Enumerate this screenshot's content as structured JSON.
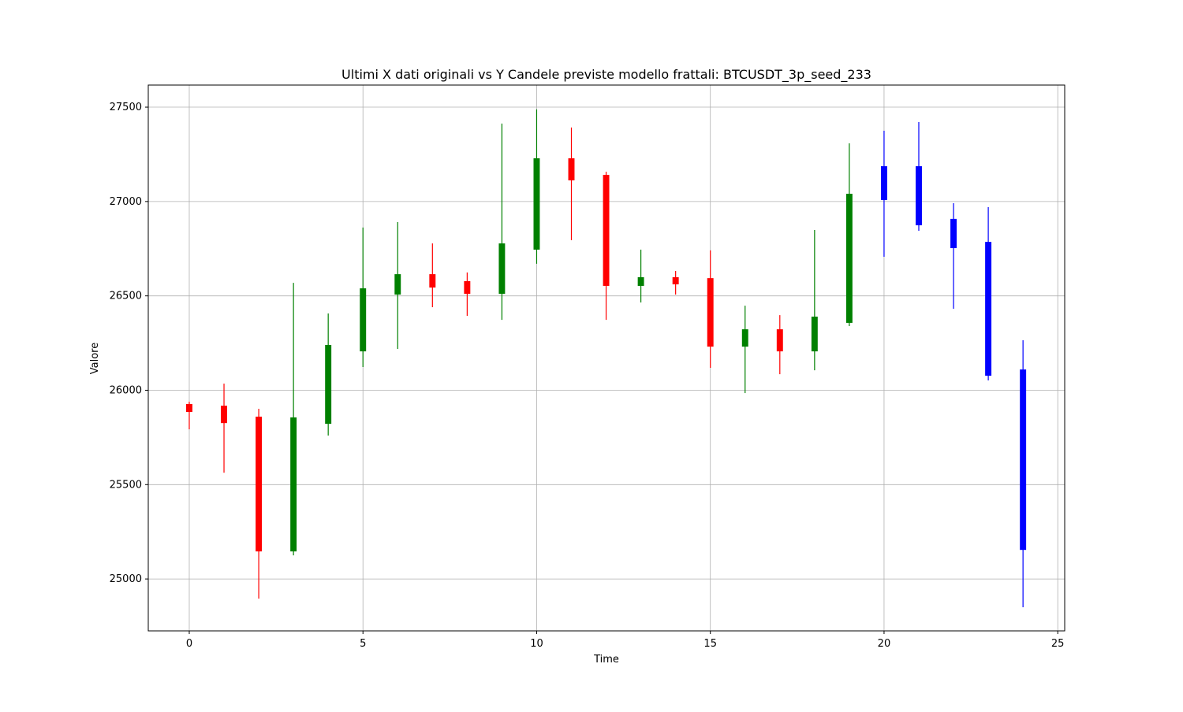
{
  "chart_data": {
    "type": "candlestick",
    "title": "Ultimi X dati originali vs Y Candele previste modello frattali: BTCUSDT_3p_seed_233",
    "x_label": "Time",
    "y_label": "Valore",
    "x": [
      0,
      1,
      2,
      3,
      4,
      5,
      6,
      7,
      8,
      9,
      10,
      11,
      12,
      13,
      14,
      15,
      16,
      17,
      18,
      19,
      20,
      21,
      22,
      23,
      24
    ],
    "open": [
      25927,
      25918,
      25860,
      25146,
      25822,
      26206,
      26507,
      26615,
      26578,
      26511,
      26745,
      27229,
      27141,
      26553,
      26599,
      26594,
      26231,
      26323,
      26206,
      26357,
      27008,
      27187,
      26908,
      26786,
      26110
    ],
    "high": [
      25939,
      26035,
      25902,
      26569,
      26407,
      26862,
      26891,
      26778,
      26624,
      27413,
      27488,
      27392,
      27158,
      26745,
      26632,
      26741,
      26448,
      26398,
      26849,
      27308,
      27375,
      27421,
      26991,
      26970,
      26265
    ],
    "low": [
      25793,
      25563,
      24896,
      25125,
      25760,
      26123,
      26219,
      26440,
      26394,
      26373,
      26670,
      26795,
      26373,
      26465,
      26507,
      26119,
      25985,
      26085,
      26106,
      26340,
      26707,
      26845,
      26432,
      26052,
      24850
    ],
    "close": [
      25885,
      25826,
      25146,
      25856,
      26240,
      26540,
      26615,
      26544,
      26511,
      26778,
      27229,
      27112,
      26553,
      26599,
      26561,
      26231,
      26323,
      26206,
      26390,
      27041,
      27187,
      26874,
      26753,
      26077,
      25154
    ],
    "colors": [
      "red",
      "red",
      "red",
      "green",
      "green",
      "green",
      "green",
      "red",
      "red",
      "green",
      "green",
      "red",
      "red",
      "green",
      "red",
      "red",
      "green",
      "red",
      "green",
      "green",
      "blue",
      "blue",
      "blue",
      "blue",
      "blue"
    ],
    "xlim": [
      -1.18,
      25.2
    ],
    "ylim": [
      24725,
      27617
    ],
    "xticks": [
      0,
      5,
      10,
      15,
      20,
      25
    ],
    "yticks": [
      25000,
      25500,
      26000,
      26500,
      27000,
      27500
    ],
    "grid": true
  }
}
